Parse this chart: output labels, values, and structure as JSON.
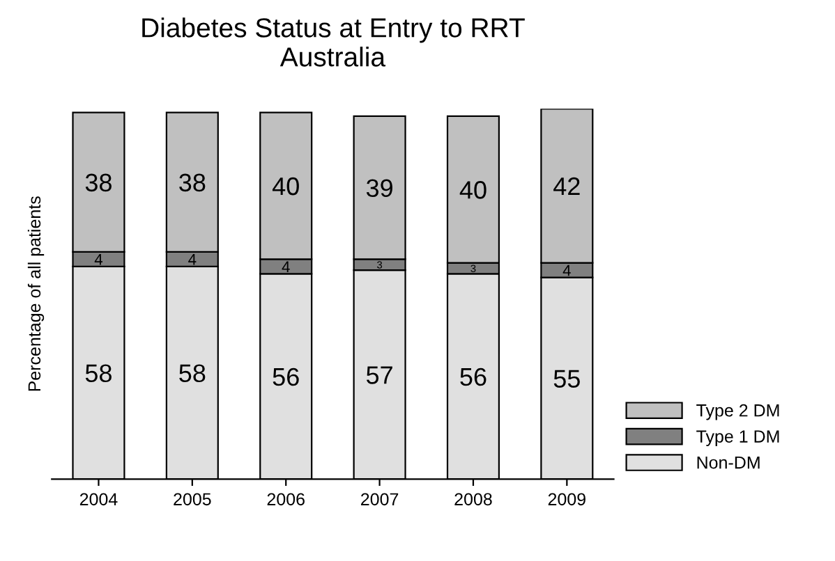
{
  "chart_data": {
    "type": "bar",
    "title": "Diabetes Status at Entry to RRT\nAustralia",
    "ylabel": "Percentage of all patients",
    "categories": [
      "2004",
      "2005",
      "2006",
      "2007",
      "2008",
      "2009"
    ],
    "series": [
      {
        "name": "Non-DM",
        "color": "#e0e0e0",
        "values": [
          58,
          58,
          56,
          57,
          56,
          55
        ]
      },
      {
        "name": "Type 1 DM",
        "color": "#808080",
        "values": [
          4,
          4,
          4,
          3,
          3,
          4
        ]
      },
      {
        "name": "Type 2 DM",
        "color": "#c0c0c0",
        "values": [
          38,
          38,
          40,
          39,
          40,
          42
        ]
      }
    ],
    "stacked": true,
    "data_labels": true,
    "ylim": [
      0,
      101
    ],
    "tick_labels": "x",
    "grid": false,
    "legend": "bottom right"
  }
}
